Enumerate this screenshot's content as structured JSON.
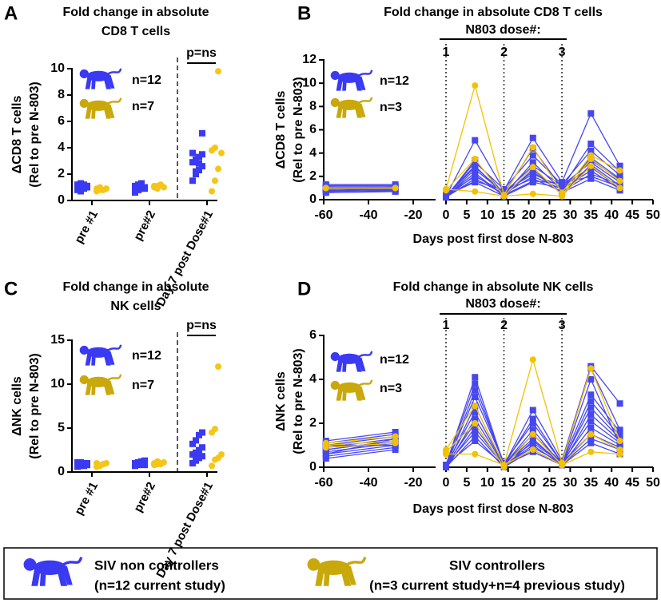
{
  "chart_data": [
    {
      "panel": "A",
      "type": "dot",
      "title": [
        "Fold change in absolute",
        "CD8 T cells"
      ],
      "ylabel": [
        "ΔCD8 T cells",
        "(Rel to pre N-803)"
      ],
      "categories": [
        "pre #1",
        "pre#2",
        "Day 7 post Dose#1"
      ],
      "ylim": [
        0,
        10
      ],
      "yticks": [
        0,
        2,
        4,
        6,
        8,
        10
      ],
      "annotation": "p=ns",
      "legend": [
        {
          "label": "n=12",
          "color": "#3a3af2"
        },
        {
          "label": "n=7",
          "color": "#c9a80c"
        }
      ],
      "series": [
        {
          "color": "#3a3af2",
          "marker": "square",
          "values": [
            [
              0.8,
              0.9,
              1.0,
              1.1,
              1.2,
              1.3,
              0.9,
              1.0,
              1.1,
              0.7,
              1.2,
              1.0
            ],
            [
              0.6,
              0.8,
              0.9,
              1.0,
              1.1,
              1.2,
              1.3,
              0.9,
              1.0,
              0.8,
              1.1,
              1.0
            ],
            [
              1.5,
              2.0,
              2.3,
              2.6,
              2.9,
              3.1,
              3.3,
              3.5,
              3.6,
              2.2,
              2.8,
              5.1
            ]
          ]
        },
        {
          "color": "#f5c518",
          "marker": "circle",
          "values": [
            [
              0.7,
              0.8,
              0.8,
              0.9,
              0.9,
              1.0,
              0.8
            ],
            [
              1.0,
              1.1,
              1.2,
              1.0,
              1.1,
              0.9,
              1.2
            ],
            [
              0.7,
              1.5,
              2.4,
              3.6,
              3.8,
              4.0,
              9.8
            ]
          ]
        }
      ]
    },
    {
      "panel": "B",
      "type": "line",
      "title": [
        "Fold change in absolute CD8 T cells"
      ],
      "ylabel": [
        "ΔCD8 T cells",
        "(Rel to pre N-803)"
      ],
      "xlabel": "Days post first dose N-803",
      "x": [
        -59,
        -28,
        0,
        7,
        14,
        21,
        28,
        35,
        42
      ],
      "xlim": [
        -60,
        50
      ],
      "x_break": [
        -10,
        0
      ],
      "xticks": [
        -60,
        -40,
        -20,
        0,
        5,
        10,
        15,
        20,
        25,
        30,
        35,
        40,
        45,
        50
      ],
      "ylim": [
        0,
        12
      ],
      "yticks": [
        0,
        2,
        4,
        6,
        8,
        10,
        12
      ],
      "dose_header": "N803 dose#:",
      "doses": [
        0,
        14,
        28
      ],
      "dose_labels": [
        "1",
        "2",
        "3"
      ],
      "legend": [
        {
          "label": "n=12",
          "color": "#3a3af2"
        },
        {
          "label": "n=3",
          "color": "#c9a80c"
        }
      ],
      "series": [
        {
          "color": "#4747f0",
          "marker": "square",
          "values": [
            1.3,
            1.3,
            0.3,
            5.1,
            0.8,
            5.3,
            1.5,
            7.4,
            2.9
          ]
        },
        {
          "color": "#4747f0",
          "marker": "square",
          "values": [
            1.1,
            1.1,
            0.2,
            3.4,
            0.5,
            4.4,
            1.0,
            4.8,
            2.4
          ]
        },
        {
          "color": "#4747f0",
          "marker": "square",
          "values": [
            0.9,
            0.8,
            0.3,
            3.2,
            0.9,
            3.8,
            1.3,
            4.2,
            2.1
          ]
        },
        {
          "color": "#4747f0",
          "marker": "square",
          "values": [
            0.7,
            1.0,
            0.4,
            2.9,
            0.4,
            3.2,
            0.8,
            3.6,
            1.8
          ]
        },
        {
          "color": "#4747f0",
          "marker": "square",
          "values": [
            1.0,
            0.9,
            0.2,
            2.6,
            0.6,
            2.9,
            1.2,
            3.2,
            1.5
          ]
        },
        {
          "color": "#4747f0",
          "marker": "square",
          "values": [
            0.6,
            0.7,
            0.3,
            2.3,
            0.3,
            2.6,
            0.5,
            3.0,
            1.2
          ]
        },
        {
          "color": "#4747f0",
          "marker": "square",
          "values": [
            1.2,
            1.2,
            0.4,
            2.0,
            0.7,
            2.2,
            1.1,
            2.8,
            1.0
          ]
        },
        {
          "color": "#4747f0",
          "marker": "square",
          "values": [
            0.8,
            0.7,
            0.2,
            1.8,
            0.5,
            2.0,
            0.9,
            2.5,
            0.9
          ]
        },
        {
          "color": "#4747f0",
          "marker": "square",
          "values": [
            1.0,
            1.1,
            0.3,
            1.6,
            0.8,
            1.8,
            0.7,
            2.2,
            1.3
          ]
        },
        {
          "color": "#4747f0",
          "marker": "square",
          "values": [
            0.9,
            0.9,
            0.2,
            2.1,
            0.4,
            1.6,
            1.4,
            2.0,
            1.1
          ]
        },
        {
          "color": "#4747f0",
          "marker": "square",
          "values": [
            0.7,
            0.8,
            0.3,
            2.8,
            0.6,
            2.4,
            0.6,
            1.8,
            0.8
          ]
        },
        {
          "color": "#4747f0",
          "marker": "square",
          "values": [
            1.1,
            1.0,
            0.4,
            1.5,
            0.3,
            1.5,
            1.0,
            3.4,
            1.7
          ]
        },
        {
          "color": "#f2c200",
          "marker": "circle",
          "values": [
            1.0,
            1.0,
            0.9,
            9.8,
            0.4,
            4.5,
            0.6,
            3.8,
            2.5
          ]
        },
        {
          "color": "#f2c200",
          "marker": "circle",
          "values": [
            1.0,
            1.0,
            0.8,
            3.5,
            0.3,
            2.8,
            0.4,
            3.5,
            1.6
          ]
        },
        {
          "color": "#f2c200",
          "marker": "circle",
          "values": [
            1.0,
            1.0,
            0.9,
            0.7,
            0.3,
            0.5,
            0.3,
            2.9,
            1.0
          ]
        }
      ]
    },
    {
      "panel": "C",
      "type": "dot",
      "title": [
        "Fold change in absolute",
        "NK cells"
      ],
      "ylabel": [
        "ΔNK cells",
        "(Rel to pre N-803)"
      ],
      "categories": [
        "pre #1",
        "pre#2",
        "Day 7 post Dose#1"
      ],
      "ylim": [
        0,
        15
      ],
      "yticks": [
        0,
        5,
        10,
        15
      ],
      "annotation": "p=ns",
      "legend": [
        {
          "label": "n=12",
          "color": "#3a3af2"
        },
        {
          "label": "n=7",
          "color": "#c9a80c"
        }
      ],
      "series": [
        {
          "color": "#3a3af2",
          "marker": "square",
          "values": [
            [
              0.6,
              0.7,
              0.8,
              0.8,
              0.9,
              0.9,
              1.0,
              1.0,
              1.1,
              1.1,
              0.7,
              0.9
            ],
            [
              0.7,
              0.8,
              0.9,
              1.0,
              1.0,
              1.1,
              1.2,
              1.3,
              0.9,
              1.1,
              1.0,
              0.8
            ],
            [
              1.0,
              1.3,
              1.6,
              1.8,
              2.0,
              2.2,
              2.5,
              2.8,
              3.2,
              3.6,
              4.2,
              4.5
            ]
          ]
        },
        {
          "color": "#f5c518",
          "marker": "circle",
          "values": [
            [
              0.6,
              0.8,
              0.9,
              1.0,
              1.0,
              0.7,
              0.9
            ],
            [
              0.8,
              0.9,
              1.0,
              1.1,
              1.0,
              1.2,
              0.9
            ],
            [
              0.7,
              1.4,
              1.6,
              2.0,
              4.5,
              4.9,
              12.0
            ]
          ]
        }
      ]
    },
    {
      "panel": "D",
      "type": "line",
      "title": [
        "Fold change in absolute NK cells"
      ],
      "ylabel": [
        "ΔNK cells",
        "(Rel to pre N-803)"
      ],
      "xlabel": "Days post first dose N-803",
      "x": [
        -59,
        -28,
        0,
        7,
        14,
        21,
        28,
        35,
        42
      ],
      "xlim": [
        -60,
        50
      ],
      "x_break": [
        -10,
        0
      ],
      "xticks": [
        -60,
        -40,
        -20,
        0,
        5,
        10,
        15,
        20,
        25,
        30,
        35,
        40,
        45,
        50
      ],
      "ylim": [
        0,
        6
      ],
      "yticks": [
        0,
        2,
        4,
        6
      ],
      "dose_header": "N803 dose#:",
      "doses": [
        0,
        14,
        28
      ],
      "dose_labels": [
        "1",
        "2",
        "3"
      ],
      "legend": [
        {
          "label": "n=12",
          "color": "#3a3af2"
        },
        {
          "label": "n=3",
          "color": "#c9a80c"
        }
      ],
      "series": [
        {
          "color": "#4747f0",
          "marker": "square",
          "values": [
            1.2,
            1.6,
            0.1,
            4.1,
            0.1,
            2.6,
            0.3,
            4.6,
            2.9
          ]
        },
        {
          "color": "#4747f0",
          "marker": "square",
          "values": [
            1.1,
            1.5,
            0.1,
            3.8,
            0.1,
            2.2,
            0.2,
            4.5,
            1.7
          ]
        },
        {
          "color": "#4747f0",
          "marker": "square",
          "values": [
            1.0,
            1.4,
            0.1,
            3.2,
            0.2,
            2.0,
            0.2,
            3.3,
            1.6
          ]
        },
        {
          "color": "#4747f0",
          "marker": "square",
          "values": [
            0.9,
            1.3,
            0.0,
            2.8,
            0.1,
            1.7,
            0.1,
            3.0,
            1.4
          ]
        },
        {
          "color": "#4747f0",
          "marker": "square",
          "values": [
            0.8,
            1.2,
            0.1,
            2.5,
            0.1,
            1.5,
            0.2,
            2.7,
            1.3
          ]
        },
        {
          "color": "#4747f0",
          "marker": "square",
          "values": [
            0.7,
            1.1,
            0.0,
            2.2,
            0.1,
            1.3,
            0.1,
            2.4,
            1.2
          ]
        },
        {
          "color": "#4747f0",
          "marker": "square",
          "values": [
            0.6,
            1.0,
            0.1,
            2.0,
            0.0,
            1.2,
            0.2,
            2.1,
            1.1
          ]
        },
        {
          "color": "#4747f0",
          "marker": "square",
          "values": [
            0.5,
            0.9,
            0.0,
            1.8,
            0.1,
            1.0,
            0.1,
            1.8,
            1.0
          ]
        },
        {
          "color": "#4747f0",
          "marker": "square",
          "values": [
            0.4,
            0.8,
            0.1,
            1.6,
            0.1,
            0.9,
            0.2,
            1.5,
            0.9
          ]
        },
        {
          "color": "#4747f0",
          "marker": "square",
          "values": [
            1.0,
            1.0,
            0.0,
            1.4,
            0.0,
            0.8,
            0.1,
            1.3,
            0.8
          ]
        },
        {
          "color": "#4747f0",
          "marker": "square",
          "values": [
            0.8,
            1.2,
            0.1,
            1.2,
            0.1,
            0.7,
            0.1,
            1.1,
            0.6
          ]
        },
        {
          "color": "#4747f0",
          "marker": "square",
          "values": [
            0.6,
            1.3,
            0.0,
            3.5,
            0.2,
            1.1,
            0.2,
            4.0,
            1.0
          ]
        },
        {
          "color": "#f2c200",
          "marker": "circle",
          "values": [
            1.1,
            1.4,
            0.8,
            2.8,
            0.1,
            4.9,
            0.2,
            4.5,
            1.2
          ]
        },
        {
          "color": "#f2c200",
          "marker": "circle",
          "values": [
            1.0,
            1.2,
            0.7,
            2.0,
            0.0,
            1.5,
            0.1,
            1.5,
            0.8
          ]
        },
        {
          "color": "#f2c200",
          "marker": "circle",
          "values": [
            0.9,
            1.1,
            0.6,
            0.6,
            0.1,
            0.8,
            0.1,
            0.7,
            0.6
          ]
        }
      ]
    }
  ],
  "legend": {
    "items": [
      {
        "label": "SIV non controllers",
        "sublabel": "(n=12 current study)",
        "color": "#3a3af2"
      },
      {
        "label": "SIV controllers",
        "sublabel": "(n=3 current study+n=4 previous study)",
        "color": "#c9a80c"
      }
    ]
  }
}
